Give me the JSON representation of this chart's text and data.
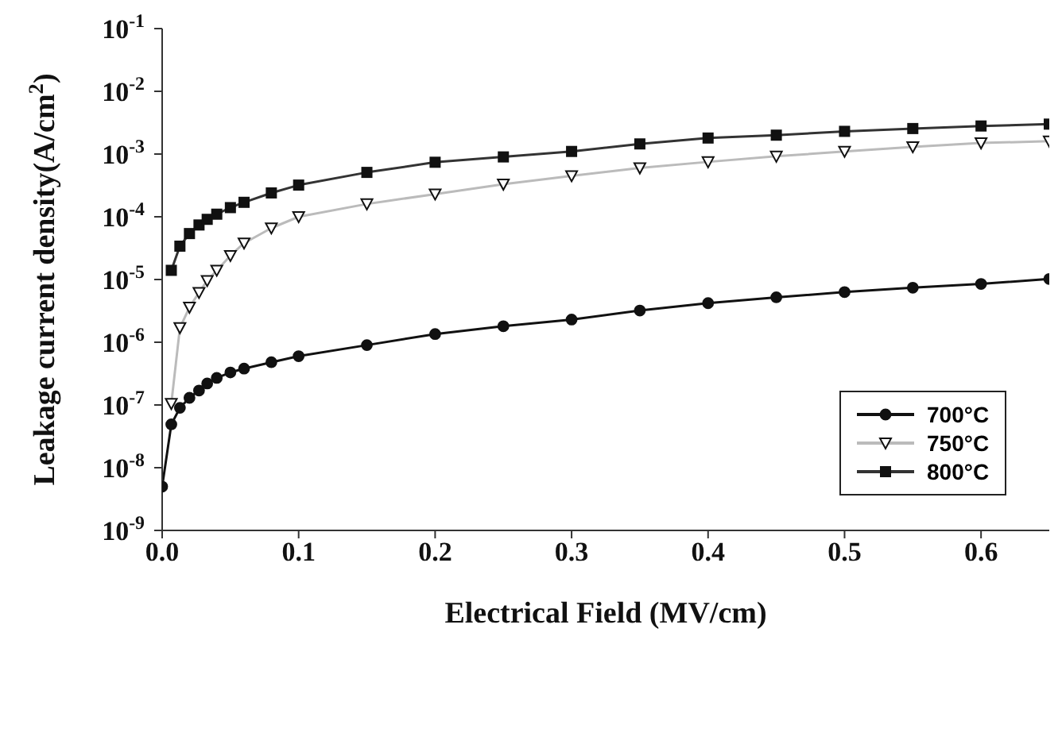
{
  "chart_data": {
    "type": "line",
    "xlabel": "Electrical Field (MV/cm)",
    "ylabel": "Leakage current density(A/cm$^{2}$)",
    "log": "y",
    "xlim": [
      0,
      0.65
    ],
    "xticks": [
      {
        "value": 0,
        "label": "0.0"
      },
      0.1,
      0.2,
      0.3,
      0.4,
      0.5,
      0.6
    ],
    "ylim": [
      1e-09,
      0.1
    ],
    "yticks": [
      {
        "value": 1e-09,
        "label": "10$^{-9}$"
      },
      {
        "value": 1e-08,
        "label": "10$^{-8}$"
      },
      {
        "value": 1e-07,
        "label": "10$^{-7}$"
      },
      {
        "value": 1e-06,
        "label": "10$^{-6}$"
      },
      {
        "value": 1e-05,
        "label": "10$^{-5}$"
      },
      {
        "value": 0.0001,
        "label": "10$^{-4}$"
      },
      {
        "value": 0.001,
        "label": "10$^{-3}$"
      },
      {
        "value": 0.01,
        "label": "10$^{-2}$"
      },
      {
        "value": 0.1,
        "label": "10$^{-1}$"
      }
    ],
    "grid": false,
    "legend": "bottom right",
    "line_style": "solid",
    "series": [
      {
        "name": "700°C",
        "color": "#111111",
        "marker": "circle",
        "x": [
          0,
          0.0067,
          0.013,
          0.02,
          0.027,
          0.033,
          0.04,
          0.05,
          0.06,
          0.08,
          0.1,
          0.15,
          0.2,
          0.25,
          0.3,
          0.35,
          0.4,
          0.45,
          0.5,
          0.55,
          0.6,
          0.65
        ],
        "values": [
          5e-09,
          4.9e-08,
          9e-08,
          1.3e-07,
          1.7e-07,
          2.2e-07,
          2.7e-07,
          3.3e-07,
          3.8e-07,
          4.8e-07,
          6e-07,
          9e-07,
          1.35e-06,
          1.8e-06,
          2.3e-06,
          3.2e-06,
          4.2e-06,
          5.2e-06,
          6.3e-06,
          7.4e-06,
          8.5e-06,
          1.02e-05
        ]
      },
      {
        "name": "750°C",
        "color": "#bbbbbb",
        "marker": "triangle",
        "x": [
          0.0067,
          0.013,
          0.02,
          0.027,
          0.033,
          0.04,
          0.05,
          0.06,
          0.08,
          0.1,
          0.15,
          0.2,
          0.25,
          0.3,
          0.35,
          0.4,
          0.45,
          0.5,
          0.55,
          0.6,
          0.65
        ],
        "values": [
          1.05e-07,
          1.7e-06,
          3.6e-06,
          6.2e-06,
          9.6e-06,
          1.4e-05,
          2.4e-05,
          3.8e-05,
          6.6e-05,
          0.0001,
          0.00016,
          0.00023,
          0.00033,
          0.00045,
          0.0006,
          0.00075,
          0.00092,
          0.0011,
          0.0013,
          0.0015,
          0.0016
        ]
      },
      {
        "name": "800°C",
        "color": "#333333",
        "marker": "square",
        "x": [
          0.0067,
          0.013,
          0.02,
          0.027,
          0.033,
          0.04,
          0.05,
          0.06,
          0.08,
          0.1,
          0.15,
          0.2,
          0.25,
          0.3,
          0.35,
          0.4,
          0.45,
          0.5,
          0.55,
          0.6,
          0.65
        ],
        "values": [
          1.4e-05,
          3.4e-05,
          5.4e-05,
          7.4e-05,
          9.1e-05,
          0.00011,
          0.00014,
          0.00017,
          0.00024,
          0.00032,
          0.00051,
          0.00074,
          0.0009,
          0.0011,
          0.00145,
          0.0018,
          0.002,
          0.0023,
          0.00255,
          0.0028,
          0.003
        ]
      }
    ]
  }
}
